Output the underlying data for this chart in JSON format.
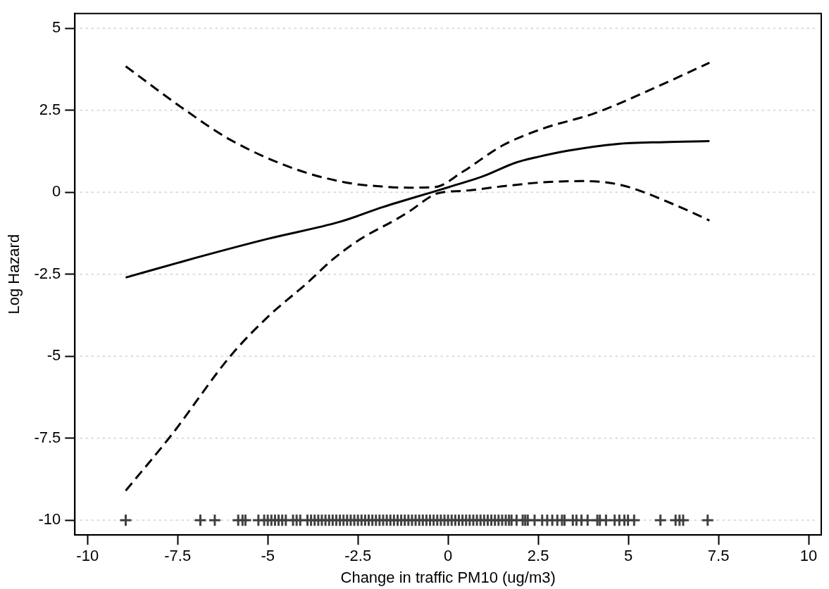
{
  "chart_data": {
    "type": "line",
    "xlabel": "Change in traffic PM10 (ug/m3)",
    "ylabel": "Log Hazard",
    "xlim": [
      -10.35,
      10.35
    ],
    "ylim": [
      -10.45,
      5.45
    ],
    "xticks": [
      -10,
      -7.5,
      -5,
      -2.5,
      0,
      2.5,
      5,
      7.5,
      10
    ],
    "yticks": [
      -10,
      -7.5,
      -5,
      -2.5,
      0,
      2.5,
      5
    ],
    "grid": "y",
    "series": [
      {
        "type": "line",
        "color": "#000000",
        "line_style": "solid",
        "marker": "none",
        "x": [
          -8.94,
          -7,
          -5,
          -3,
          -1.8,
          -0.3,
          0,
          1,
          1.87,
          2.5,
          3.34,
          4.67,
          6,
          7.25
        ],
        "values": [
          -2.6,
          -2.0,
          -1.42,
          -0.9,
          -0.45,
          0.05,
          0.15,
          0.5,
          0.9,
          1.08,
          1.27,
          1.47,
          1.53,
          1.56
        ]
      },
      {
        "type": "line",
        "color": "#000000",
        "line_style": "dashed",
        "marker": "none",
        "x": [
          -8.94,
          -7.32,
          -6.04,
          -4.27,
          -2.85,
          -1.79,
          -1.07,
          -0.36,
          0.4,
          1.5,
          2.6,
          4.07,
          5.54,
          7.25
        ],
        "values": [
          3.84,
          2.53,
          1.6,
          0.72,
          0.3,
          0.17,
          0.14,
          0.16,
          0.62,
          1.42,
          1.93,
          2.41,
          3.09,
          3.95
        ]
      },
      {
        "type": "line",
        "color": "#000000",
        "line_style": "dashed",
        "marker": "none",
        "x": [
          -8.94,
          -7.67,
          -6.04,
          -4.97,
          -3.91,
          -3.2,
          -2.49,
          -1.43,
          -1.07,
          -0.36,
          0,
          0.4,
          1.5,
          2.6,
          3.7,
          4.8,
          6.28,
          7.25
        ],
        "values": [
          -9.1,
          -7.4,
          -5.0,
          -3.77,
          -2.77,
          -2.05,
          -1.47,
          -0.82,
          -0.58,
          -0.06,
          0.02,
          0.04,
          0.18,
          0.3,
          0.34,
          0.22,
          -0.38,
          -0.86
        ]
      },
      {
        "type": "scatter",
        "color": "#404040",
        "marker": "cross",
        "x": [
          -8.94,
          -6.87,
          -6.47,
          -5.82,
          -5.7,
          -5.62,
          -5.26,
          -5.1,
          -5.0,
          -4.9,
          -4.8,
          -4.7,
          -4.6,
          -4.5,
          -4.3,
          -4.2,
          -4.1,
          -3.9,
          -3.8,
          -3.7,
          -3.6,
          -3.5,
          -3.4,
          -3.3,
          -3.2,
          -3.1,
          -3.0,
          -2.9,
          -2.8,
          -2.7,
          -2.6,
          -2.5,
          -2.4,
          -2.3,
          -2.2,
          -2.1,
          -2.0,
          -1.9,
          -1.8,
          -1.7,
          -1.6,
          -1.5,
          -1.4,
          -1.3,
          -1.2,
          -1.1,
          -1.0,
          -0.9,
          -0.8,
          -0.7,
          -0.6,
          -0.5,
          -0.4,
          -0.3,
          -0.2,
          -0.1,
          0.0,
          0.1,
          0.2,
          0.3,
          0.4,
          0.5,
          0.6,
          0.7,
          0.8,
          0.9,
          1.0,
          1.1,
          1.2,
          1.3,
          1.4,
          1.5,
          1.6,
          1.69,
          1.76,
          1.9,
          2.07,
          2.14,
          2.21,
          2.4,
          2.61,
          2.75,
          2.89,
          3.03,
          3.16,
          3.23,
          3.46,
          3.56,
          3.7,
          3.87,
          4.14,
          4.21,
          4.38,
          4.62,
          4.75,
          4.89,
          4.99,
          5.16,
          5.89,
          6.31,
          6.42,
          6.52,
          7.2
        ],
        "values": [
          -10,
          -10,
          -10,
          -10,
          -10,
          -10,
          -10,
          -10,
          -10,
          -10,
          -10,
          -10,
          -10,
          -10,
          -10,
          -10,
          -10,
          -10,
          -10,
          -10,
          -10,
          -10,
          -10,
          -10,
          -10,
          -10,
          -10,
          -10,
          -10,
          -10,
          -10,
          -10,
          -10,
          -10,
          -10,
          -10,
          -10,
          -10,
          -10,
          -10,
          -10,
          -10,
          -10,
          -10,
          -10,
          -10,
          -10,
          -10,
          -10,
          -10,
          -10,
          -10,
          -10,
          -10,
          -10,
          -10,
          -10,
          -10,
          -10,
          -10,
          -10,
          -10,
          -10,
          -10,
          -10,
          -10,
          -10,
          -10,
          -10,
          -10,
          -10,
          -10,
          -10,
          -10,
          -10,
          -10,
          -10,
          -10,
          -10,
          -10,
          -10,
          -10,
          -10,
          -10,
          -10,
          -10,
          -10,
          -10,
          -10,
          -10,
          -10,
          -10,
          -10,
          -10,
          -10,
          -10,
          -10,
          -10,
          -10,
          -10,
          -10,
          -10,
          -10
        ]
      }
    ]
  }
}
